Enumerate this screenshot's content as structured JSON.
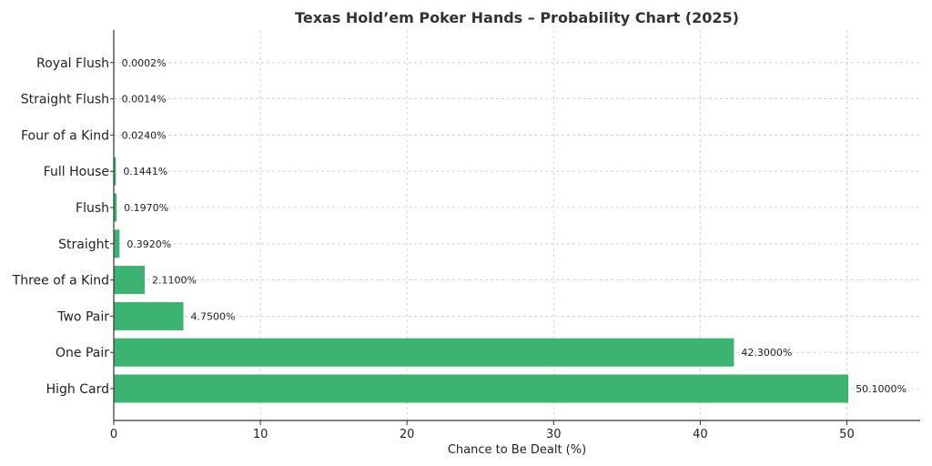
{
  "chart_data": {
    "type": "bar",
    "orientation": "horizontal",
    "title": "Texas Hold’em Poker Hands – Probability Chart (2025)",
    "xlabel": "Chance to Be Dealt (%)",
    "ylabel": "",
    "xlim": [
      0,
      55
    ],
    "xticks": [
      "0",
      "10",
      "20",
      "30",
      "40",
      "50"
    ],
    "grid": true,
    "bar_color": "#3cb371",
    "categories": [
      "High Card",
      "One Pair",
      "Two Pair",
      "Three of a Kind",
      "Straight",
      "Flush",
      "Full House",
      "Four of a Kind",
      "Straight Flush",
      "Royal Flush"
    ],
    "values": [
      50.1,
      42.3,
      4.75,
      2.11,
      0.392,
      0.197,
      0.1441,
      0.024,
      0.0014,
      0.0002
    ],
    "value_labels": [
      "50.1000%",
      "42.3000%",
      "4.7500%",
      "2.1100%",
      "0.3920%",
      "0.1970%",
      "0.1441%",
      "0.0240%",
      "0.0014%",
      "0.0002%"
    ]
  }
}
